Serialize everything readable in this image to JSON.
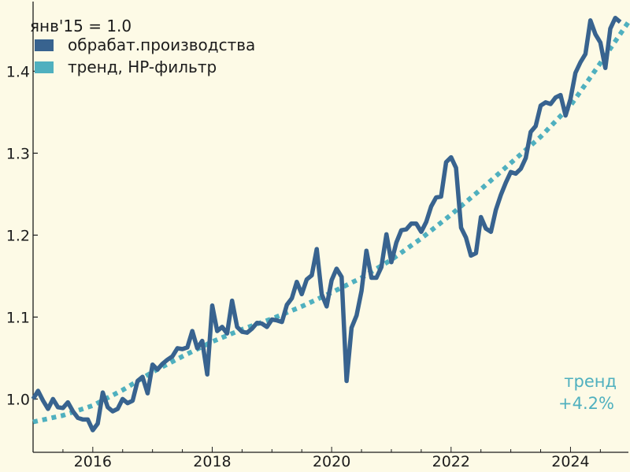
{
  "colors": {
    "background": "#fdfae6",
    "series_main": "#38638f",
    "series_trend": "#4fb0bf",
    "text": "#1c1c1c",
    "axis": "#1c1c1c"
  },
  "chart_data": {
    "type": "line",
    "title": "",
    "xlabel": "",
    "ylabel": "",
    "xlim": [
      2015.0,
      2024.97
    ],
    "ylim": [
      0.935,
      1.485
    ],
    "grid": false,
    "legend_position": "top-left",
    "legend_title": "янв'15 = 1.0",
    "x_ticks": [
      2016,
      2018,
      2020,
      2022,
      2024
    ],
    "x_tick_labels": [
      "2016",
      "2018",
      "2020",
      "2022",
      "2024"
    ],
    "y_ticks": [
      1.0,
      1.1,
      1.2,
      1.3,
      1.4
    ],
    "y_tick_labels": [
      "1.0",
      "1.1",
      "1.2",
      "1.3",
      "1.4"
    ],
    "series": [
      {
        "name": "обрабат.производства",
        "style": "solid",
        "color": "#38638f",
        "x": [
          2015.0,
          2015.083,
          2015.167,
          2015.25,
          2015.333,
          2015.417,
          2015.5,
          2015.583,
          2015.667,
          2015.75,
          2015.833,
          2015.917,
          2016.0,
          2016.083,
          2016.167,
          2016.25,
          2016.333,
          2016.417,
          2016.5,
          2016.583,
          2016.667,
          2016.75,
          2016.833,
          2016.917,
          2017.0,
          2017.083,
          2017.167,
          2017.25,
          2017.333,
          2017.417,
          2017.5,
          2017.583,
          2017.667,
          2017.75,
          2017.833,
          2017.917,
          2018.0,
          2018.083,
          2018.167,
          2018.25,
          2018.333,
          2018.417,
          2018.5,
          2018.583,
          2018.667,
          2018.75,
          2018.833,
          2018.917,
          2019.0,
          2019.083,
          2019.167,
          2019.25,
          2019.333,
          2019.417,
          2019.5,
          2019.583,
          2019.667,
          2019.75,
          2019.833,
          2019.917,
          2020.0,
          2020.083,
          2020.167,
          2020.25,
          2020.333,
          2020.417,
          2020.5,
          2020.583,
          2020.667,
          2020.75,
          2020.833,
          2020.917,
          2021.0,
          2021.083,
          2021.167,
          2021.25,
          2021.333,
          2021.417,
          2021.5,
          2021.583,
          2021.667,
          2021.75,
          2021.833,
          2021.917,
          2022.0,
          2022.083,
          2022.167,
          2022.25,
          2022.333,
          2022.417,
          2022.5,
          2022.583,
          2022.667,
          2022.75,
          2022.833,
          2022.917,
          2023.0,
          2023.083,
          2023.167,
          2023.25,
          2023.333,
          2023.417,
          2023.5,
          2023.583,
          2023.667,
          2023.75,
          2023.833,
          2023.917,
          2024.0,
          2024.083,
          2024.167,
          2024.25,
          2024.333,
          2024.417,
          2024.5,
          2024.583,
          2024.667,
          2024.75,
          2024.833
        ],
        "values": [
          1.0,
          1.01,
          0.998,
          0.988,
          1.0,
          0.99,
          0.989,
          0.996,
          0.985,
          0.977,
          0.975,
          0.975,
          0.962,
          0.97,
          1.008,
          0.99,
          0.985,
          0.988,
          1.0,
          0.995,
          0.998,
          1.022,
          1.027,
          1.007,
          1.042,
          1.036,
          1.043,
          1.048,
          1.052,
          1.062,
          1.061,
          1.063,
          1.083,
          1.062,
          1.071,
          1.03,
          1.114,
          1.083,
          1.088,
          1.08,
          1.12,
          1.088,
          1.082,
          1.081,
          1.086,
          1.093,
          1.092,
          1.088,
          1.097,
          1.096,
          1.094,
          1.115,
          1.123,
          1.143,
          1.128,
          1.146,
          1.151,
          1.183,
          1.128,
          1.113,
          1.145,
          1.159,
          1.149,
          1.022,
          1.087,
          1.102,
          1.132,
          1.181,
          1.148,
          1.148,
          1.161,
          1.201,
          1.167,
          1.191,
          1.206,
          1.207,
          1.214,
          1.214,
          1.204,
          1.216,
          1.235,
          1.246,
          1.247,
          1.289,
          1.295,
          1.282,
          1.209,
          1.197,
          1.175,
          1.178,
          1.222,
          1.208,
          1.204,
          1.231,
          1.249,
          1.264,
          1.277,
          1.275,
          1.281,
          1.294,
          1.326,
          1.333,
          1.358,
          1.362,
          1.36,
          1.368,
          1.371,
          1.346,
          1.366,
          1.398,
          1.411,
          1.421,
          1.462,
          1.445,
          1.435,
          1.404,
          1.452,
          1.465,
          1.46
        ]
      },
      {
        "name": "тренд, HP-фильтр",
        "style": "dotted",
        "color": "#4fb0bf",
        "x": [
          2015.0,
          2015.5,
          2016.0,
          2016.5,
          2017.0,
          2017.5,
          2018.0,
          2018.5,
          2019.0,
          2019.5,
          2020.0,
          2020.5,
          2021.0,
          2021.5,
          2022.0,
          2022.5,
          2023.0,
          2023.5,
          2024.0,
          2024.5,
          2024.97
        ],
        "values": [
          0.972,
          0.98,
          0.992,
          1.011,
          1.033,
          1.052,
          1.07,
          1.085,
          1.098,
          1.113,
          1.13,
          1.148,
          1.17,
          1.196,
          1.225,
          1.256,
          1.288,
          1.32,
          1.358,
          1.41,
          1.46
        ]
      }
    ],
    "annotations": [
      {
        "text": "тренд",
        "position": "bottom-right",
        "color": "#4fb0bf"
      },
      {
        "text": "+4.2%",
        "position": "bottom-right",
        "color": "#4fb0bf"
      }
    ]
  }
}
